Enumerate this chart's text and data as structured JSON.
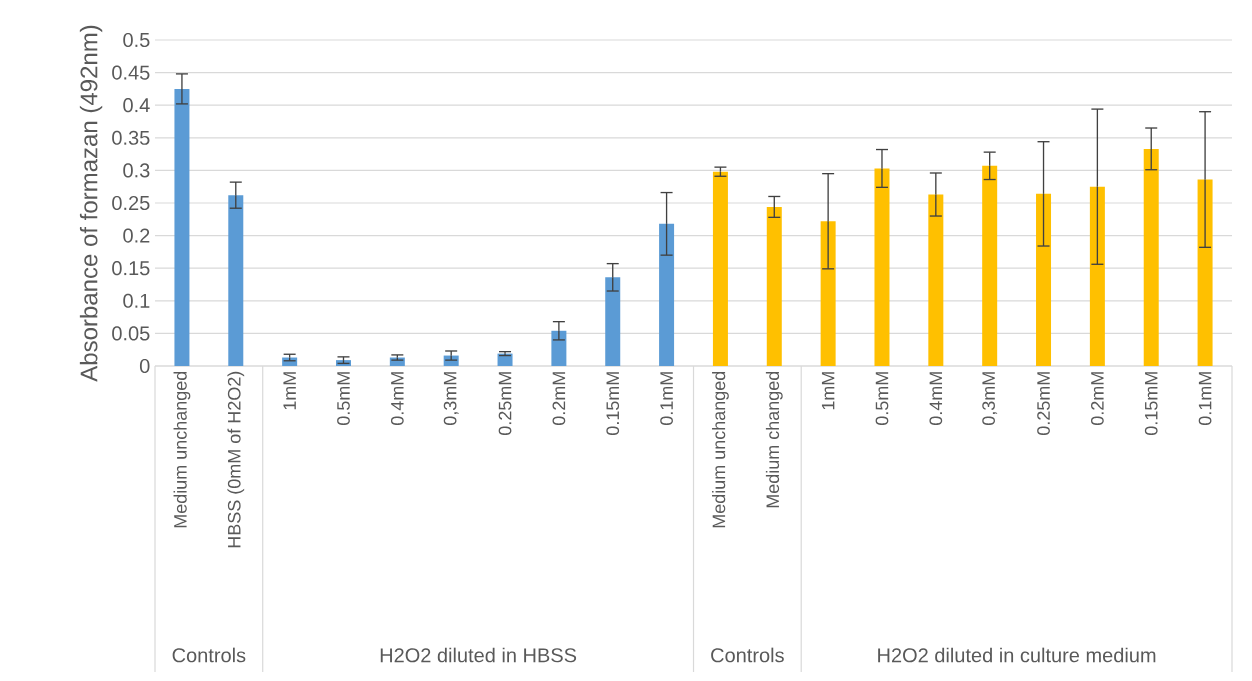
{
  "chart_data": {
    "type": "bar",
    "ylabel": "Absorbance of formazan (492nm)",
    "categories": [
      "Medium unchanged",
      "HBSS (0mM of H2O2)",
      "1mM",
      "0.5mM",
      "0.4mM",
      "0,3mM",
      "0.25mM",
      "0.2mM",
      "0.15mM",
      "0.1mM",
      "Medium unchanged",
      "Medium changed",
      "1mM",
      "0.5mM",
      "0.4mM",
      "0,3mM",
      "0.25mM",
      "0.2mM",
      "0.15mM",
      "0.1mM"
    ],
    "values": [
      0.425,
      0.262,
      0.013,
      0.009,
      0.013,
      0.016,
      0.019,
      0.054,
      0.136,
      0.218,
      0.298,
      0.244,
      0.222,
      0.303,
      0.263,
      0.307,
      0.264,
      0.275,
      0.333,
      0.286
    ],
    "errors": [
      0.023,
      0.02,
      0.005,
      0.005,
      0.004,
      0.007,
      0.003,
      0.014,
      0.021,
      0.048,
      0.007,
      0.016,
      0.073,
      0.029,
      0.033,
      0.021,
      0.08,
      0.119,
      0.032,
      0.104
    ],
    "colors": [
      "#5b9bd5",
      "#5b9bd5",
      "#5b9bd5",
      "#5b9bd5",
      "#5b9bd5",
      "#5b9bd5",
      "#5b9bd5",
      "#5b9bd5",
      "#5b9bd5",
      "#5b9bd5",
      "#ffc000",
      "#ffc000",
      "#ffc000",
      "#ffc000",
      "#ffc000",
      "#ffc000",
      "#ffc000",
      "#ffc000",
      "#ffc000",
      "#ffc000"
    ],
    "ylim": [
      0,
      0.5
    ],
    "yticks": [
      0,
      0.05,
      0.1,
      0.15,
      0.2,
      0.25,
      0.3,
      0.35,
      0.4,
      0.45,
      0.5
    ],
    "grid": "y",
    "annotations": [
      "Controls",
      "H2O2 diluted in HBSS",
      "Controls",
      "H2O2 diluted in culture medium"
    ]
  }
}
